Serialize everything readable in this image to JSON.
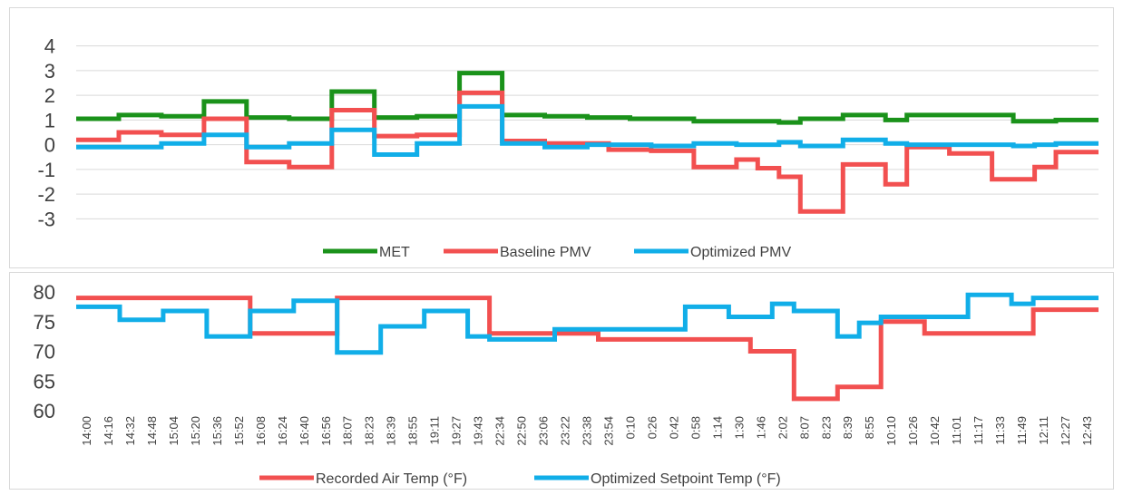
{
  "chart_data": [
    {
      "type": "line",
      "ylim": [
        -3.5,
        4.5
      ],
      "yticks": [
        "4",
        "3",
        "2",
        "1",
        "0",
        "-1",
        "-2",
        "-3"
      ],
      "ytick_values": [
        4,
        3,
        2,
        1,
        0,
        -1,
        -2,
        -3
      ],
      "grid": true,
      "legend_position": "bottom",
      "series": [
        {
          "name": "MET",
          "color": "#1a921a",
          "values": [
            1.05,
            1.05,
            1.2,
            1.2,
            1.15,
            1.15,
            1.75,
            1.75,
            1.1,
            1.1,
            1.05,
            1.05,
            2.15,
            2.15,
            1.1,
            1.1,
            1.15,
            1.15,
            2.9,
            2.9,
            1.2,
            1.2,
            1.15,
            1.15,
            1.1,
            1.1,
            1.05,
            1.05,
            1.05,
            0.95,
            0.95,
            0.95,
            0.95,
            0.9,
            1.05,
            1.05,
            1.2,
            1.2,
            1.0,
            1.2,
            1.2,
            1.2,
            1.2,
            1.2,
            0.95,
            0.95,
            1.0,
            1.0
          ]
        },
        {
          "name": "Baseline PMV",
          "color": "#f25050",
          "values": [
            0.2,
            0.2,
            0.5,
            0.5,
            0.4,
            0.4,
            1.05,
            1.05,
            -0.7,
            -0.7,
            -0.9,
            -0.9,
            1.4,
            1.4,
            0.35,
            0.35,
            0.4,
            0.4,
            2.1,
            2.1,
            0.15,
            0.15,
            0.05,
            0.05,
            0.05,
            -0.2,
            -0.2,
            -0.25,
            -0.25,
            -0.9,
            -0.9,
            -0.6,
            -0.95,
            -1.3,
            -2.7,
            -2.7,
            -0.8,
            -0.8,
            -1.6,
            -0.1,
            -0.1,
            -0.35,
            -0.35,
            -1.4,
            -1.4,
            -0.9,
            -0.3,
            -0.3
          ]
        },
        {
          "name": "Optimized PMV",
          "color": "#11aee8",
          "values": [
            -0.1,
            -0.1,
            -0.1,
            -0.1,
            0.05,
            0.05,
            0.4,
            0.4,
            -0.1,
            -0.1,
            0.05,
            0.05,
            0.6,
            0.6,
            -0.4,
            -0.4,
            0.05,
            0.05,
            1.55,
            1.55,
            0.05,
            0.05,
            -0.1,
            -0.1,
            0.0,
            0.0,
            0.0,
            -0.05,
            -0.05,
            0.05,
            0.05,
            0.0,
            0.0,
            0.1,
            -0.05,
            -0.05,
            0.2,
            0.2,
            0.05,
            0.0,
            0.0,
            0.0,
            0.0,
            0.0,
            -0.05,
            0.0,
            0.05,
            0.05
          ]
        }
      ]
    },
    {
      "type": "line",
      "ylim": [
        60,
        80
      ],
      "yticks": [
        "80",
        "75",
        "70",
        "65",
        "60"
      ],
      "ytick_values": [
        80,
        75,
        70,
        65,
        60
      ],
      "grid": false,
      "legend_position": "bottom",
      "categories": [
        "14:00",
        "14:16",
        "14:32",
        "14:48",
        "15:04",
        "15:20",
        "15:36",
        "15:52",
        "16:08",
        "16:24",
        "16:40",
        "16:56",
        "18:07",
        "18:23",
        "18:39",
        "18:55",
        "19:11",
        "19:27",
        "19:43",
        "22:34",
        "22:50",
        "23:06",
        "23:22",
        "23:38",
        "23:54",
        "0:10",
        "0:26",
        "0:42",
        "0:58",
        "1:14",
        "1:30",
        "1:46",
        "2:02",
        "8:07",
        "8:23",
        "8:39",
        "8:55",
        "10:10",
        "10:26",
        "10:42",
        "11:01",
        "11:17",
        "11:33",
        "11:49",
        "12:11",
        "12:27",
        "12:43"
      ],
      "series": [
        {
          "name": "Recorded Air Temp (°F)",
          "color": "#f25050",
          "values": [
            79,
            79,
            79,
            79,
            79,
            79,
            79,
            79,
            73,
            73,
            73,
            73,
            79,
            79,
            79,
            79,
            79,
            79,
            79,
            73,
            73,
            73,
            73,
            73,
            72,
            72,
            72,
            72,
            72,
            72,
            72,
            70,
            70,
            62,
            62,
            64,
            64,
            75,
            75,
            73,
            73,
            73,
            73,
            73,
            77,
            77,
            77
          ]
        },
        {
          "name": "Optimized Setpoint Temp (°F)",
          "color": "#11aee8",
          "values": [
            77.5,
            77.5,
            75.3,
            75.3,
            76.8,
            76.8,
            72.5,
            72.5,
            76.8,
            76.8,
            78.5,
            78.5,
            69.8,
            69.8,
            74.2,
            74.2,
            76.8,
            76.8,
            72.5,
            72,
            72,
            72,
            73.7,
            73.7,
            73.7,
            73.7,
            73.7,
            73.7,
            77.5,
            77.5,
            75.8,
            75.8,
            78,
            76.8,
            76.8,
            72.5,
            74.8,
            75.8,
            75.8,
            75.8,
            75.8,
            79.5,
            79.5,
            78,
            79,
            79,
            79
          ]
        }
      ]
    }
  ]
}
